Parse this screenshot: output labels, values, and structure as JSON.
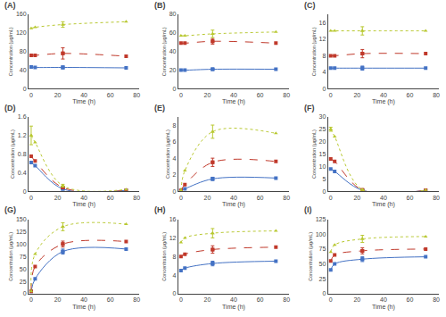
{
  "chart_data": [
    {
      "type": "line",
      "title": "(A)",
      "x_label": "Time (h)",
      "y_label": "Concentration (μg/mL)",
      "x": [
        0,
        3,
        24,
        72
      ],
      "xlim": [
        -2,
        82
      ],
      "xticks": [
        0,
        20,
        40,
        60,
        80
      ],
      "ylim": [
        0,
        160
      ],
      "yticks": [
        0,
        40,
        80,
        120,
        160
      ],
      "grid": false,
      "series": [
        {
          "color": "#4472C4",
          "line_style": "solid",
          "marker": "square",
          "values": [
            47,
            46,
            46,
            45
          ],
          "err": [
            null,
            null,
            3,
            null
          ]
        },
        {
          "color": "#C0392B",
          "line_style": "dashed",
          "marker": "square",
          "values": [
            72,
            72,
            76,
            70
          ],
          "err": [
            null,
            null,
            12,
            null
          ]
        },
        {
          "color": "#B8C830",
          "line_style": "dotted",
          "marker": "triangle-up",
          "values": [
            130,
            132,
            138,
            144
          ],
          "err": [
            null,
            null,
            6,
            null
          ]
        }
      ]
    },
    {
      "type": "line",
      "title": "(B)",
      "x_label": "Time (h)",
      "y_label": "Concentration (μg/mL)",
      "x": [
        0,
        3,
        24,
        72
      ],
      "xlim": [
        -2,
        82
      ],
      "xticks": [
        0,
        20,
        40,
        60,
        80
      ],
      "ylim": [
        0,
        80
      ],
      "yticks": [
        0,
        20,
        40,
        60,
        80
      ],
      "grid": false,
      "series": [
        {
          "color": "#4472C4",
          "line_style": "solid",
          "marker": "square",
          "values": [
            20,
            20,
            21,
            21
          ],
          "err": [
            null,
            null,
            1,
            null
          ]
        },
        {
          "color": "#C0392B",
          "line_style": "dashed",
          "marker": "square",
          "values": [
            49,
            49,
            51,
            49
          ],
          "err": [
            null,
            null,
            3,
            null
          ]
        },
        {
          "color": "#B8C830",
          "line_style": "dotted",
          "marker": "triangle-up",
          "values": [
            57,
            57,
            59,
            61
          ],
          "err": [
            null,
            null,
            4,
            null
          ]
        }
      ]
    },
    {
      "type": "line",
      "title": "(C)",
      "x_label": "Time (h)",
      "y_label": "Concentration (μg/mL)",
      "x": [
        0,
        3,
        24,
        72
      ],
      "xlim": [
        -2,
        82
      ],
      "xticks": [
        0,
        20,
        40,
        60,
        80
      ],
      "ylim": [
        0,
        18
      ],
      "yticks": [
        0,
        4,
        8,
        12,
        16
      ],
      "grid": false,
      "series": [
        {
          "color": "#4472C4",
          "line_style": "solid",
          "marker": "square",
          "values": [
            5,
            5,
            5,
            5
          ],
          "err": [
            null,
            null,
            0.5,
            null
          ]
        },
        {
          "color": "#C0392B",
          "line_style": "dashed",
          "marker": "square",
          "values": [
            8,
            8,
            8.5,
            8.5
          ],
          "err": [
            null,
            null,
            1,
            null
          ]
        },
        {
          "color": "#B8C830",
          "line_style": "dotted",
          "marker": "triangle-up",
          "values": [
            14,
            14,
            14,
            14
          ],
          "err": [
            null,
            null,
            1,
            null
          ]
        }
      ]
    },
    {
      "type": "line",
      "title": "(D)",
      "x_label": "Time (h)",
      "y_label": "Concentration (μg/mL)",
      "x": [
        0,
        3,
        24,
        72
      ],
      "xlim": [
        -2,
        82
      ],
      "xticks": [
        0,
        20,
        40,
        60,
        80
      ],
      "ylim": [
        0,
        1.6
      ],
      "yticks": [
        0,
        0.4,
        0.8,
        1.2,
        1.6
      ],
      "grid": false,
      "series": [
        {
          "color": "#4472C4",
          "line_style": "solid",
          "marker": "square",
          "values": [
            0.62,
            0.55,
            0.05,
            0.02
          ],
          "err": [
            null,
            null,
            0.02,
            null
          ]
        },
        {
          "color": "#C0392B",
          "line_style": "dashed",
          "marker": "square",
          "values": [
            0.75,
            0.65,
            0.08,
            0.02
          ],
          "err": [
            null,
            null,
            0.02,
            null
          ]
        },
        {
          "color": "#B8C830",
          "line_style": "dotted",
          "marker": "triangle-up",
          "values": [
            1.2,
            1.05,
            0.12,
            0.04
          ],
          "err": [
            0.2,
            null,
            0.03,
            null
          ]
        }
      ]
    },
    {
      "type": "line",
      "title": "(E)",
      "x_label": "Time (h)",
      "y_label": "Concentration (μg/mL)",
      "x": [
        0,
        3,
        24,
        72
      ],
      "xlim": [
        -2,
        82
      ],
      "xticks": [
        0,
        20,
        40,
        60,
        80
      ],
      "ylim": [
        0,
        9
      ],
      "yticks": [
        0,
        2,
        4,
        6,
        8
      ],
      "grid": false,
      "series": [
        {
          "color": "#4472C4",
          "line_style": "solid",
          "marker": "square",
          "values": [
            0.1,
            0.3,
            1.5,
            1.6
          ],
          "err": [
            null,
            null,
            0.2,
            null
          ]
        },
        {
          "color": "#C0392B",
          "line_style": "dashed",
          "marker": "square",
          "values": [
            0.1,
            0.8,
            3.5,
            3.6
          ],
          "err": [
            null,
            null,
            0.5,
            null
          ]
        },
        {
          "color": "#B8C830",
          "line_style": "dotted",
          "marker": "triangle-up",
          "values": [
            0.1,
            2.5,
            7.2,
            7.0
          ],
          "err": [
            null,
            null,
            0.8,
            null
          ]
        }
      ]
    },
    {
      "type": "line",
      "title": "(F)",
      "x_label": "Time (h)",
      "y_label": "Concentration (μg/mL)",
      "x": [
        0,
        3,
        24,
        72
      ],
      "xlim": [
        -2,
        82
      ],
      "xticks": [
        0,
        20,
        40,
        60,
        80
      ],
      "ylim": [
        0,
        30
      ],
      "yticks": [
        0,
        5,
        10,
        15,
        20,
        25,
        30
      ],
      "grid": false,
      "series": [
        {
          "color": "#4472C4",
          "line_style": "solid",
          "marker": "square",
          "values": [
            9,
            8,
            0.4,
            0.3
          ],
          "err": [
            null,
            null,
            0.1,
            null
          ]
        },
        {
          "color": "#C0392B",
          "line_style": "dashed",
          "marker": "square",
          "values": [
            13,
            12,
            0.5,
            0.4
          ],
          "err": [
            null,
            null,
            0.1,
            null
          ]
        },
        {
          "color": "#B8C830",
          "line_style": "dotted",
          "marker": "triangle-up",
          "values": [
            25,
            22,
            0.6,
            0.5
          ],
          "err": [
            0.8,
            null,
            0.1,
            null
          ]
        }
      ]
    },
    {
      "type": "line",
      "title": "(G)",
      "x_label": "Time (h)",
      "y_label": "Concentration (μg/mL)",
      "x": [
        0,
        3,
        24,
        72
      ],
      "xlim": [
        -2,
        82
      ],
      "xticks": [
        0,
        20,
        40,
        60,
        80
      ],
      "ylim": [
        0,
        150
      ],
      "yticks": [
        0,
        25,
        50,
        75,
        100,
        125,
        150
      ],
      "grid": false,
      "series": [
        {
          "color": "#4472C4",
          "line_style": "solid",
          "marker": "square",
          "values": [
            5,
            30,
            85,
            90
          ],
          "err": [
            null,
            null,
            5,
            null
          ]
        },
        {
          "color": "#C0392B",
          "line_style": "dashed",
          "marker": "square",
          "values": [
            5,
            55,
            100,
            105
          ],
          "err": [
            null,
            null,
            6,
            null
          ]
        },
        {
          "color": "#B8C830",
          "line_style": "dotted",
          "marker": "triangle-up",
          "values": [
            5,
            80,
            135,
            140
          ],
          "err": [
            null,
            null,
            8,
            null
          ]
        }
      ]
    },
    {
      "type": "line",
      "title": "(H)",
      "x_label": "Time (h)",
      "y_label": "Concentration (μg/mL)",
      "x": [
        0,
        3,
        24,
        72
      ],
      "xlim": [
        -2,
        82
      ],
      "xticks": [
        0,
        20,
        40,
        60,
        80
      ],
      "ylim": [
        0,
        16
      ],
      "yticks": [
        0,
        4,
        8,
        12,
        16
      ],
      "grid": false,
      "series": [
        {
          "color": "#4472C4",
          "line_style": "solid",
          "marker": "square",
          "values": [
            5,
            5.5,
            6.5,
            7
          ],
          "err": [
            null,
            null,
            0.5,
            null
          ]
        },
        {
          "color": "#C0392B",
          "line_style": "dashed",
          "marker": "square",
          "values": [
            8,
            8.5,
            9.5,
            10
          ],
          "err": [
            null,
            null,
            0.8,
            null
          ]
        },
        {
          "color": "#B8C830",
          "line_style": "dotted",
          "marker": "triangle-up",
          "values": [
            11,
            12,
            13,
            13.5
          ],
          "err": [
            null,
            null,
            1,
            null
          ]
        }
      ]
    },
    {
      "type": "line",
      "title": "(I)",
      "x_label": "Time (h)",
      "y_label": "Concentration (μg/mL)",
      "x": [
        0,
        3,
        24,
        72
      ],
      "xlim": [
        -2,
        82
      ],
      "xticks": [
        0,
        20,
        40,
        60,
        80
      ],
      "ylim": [
        0,
        125
      ],
      "yticks": [
        0,
        25,
        50,
        75,
        100,
        125
      ],
      "grid": false,
      "series": [
        {
          "color": "#4472C4",
          "line_style": "solid",
          "marker": "square",
          "values": [
            40,
            50,
            58,
            62
          ],
          "err": [
            null,
            null,
            4,
            null
          ]
        },
        {
          "color": "#C0392B",
          "line_style": "dashed",
          "marker": "square",
          "values": [
            55,
            65,
            72,
            75
          ],
          "err": [
            null,
            null,
            5,
            null
          ]
        },
        {
          "color": "#B8C830",
          "line_style": "dotted",
          "marker": "triangle-up",
          "values": [
            70,
            82,
            92,
            96
          ],
          "err": [
            null,
            null,
            6,
            null
          ]
        }
      ]
    }
  ]
}
